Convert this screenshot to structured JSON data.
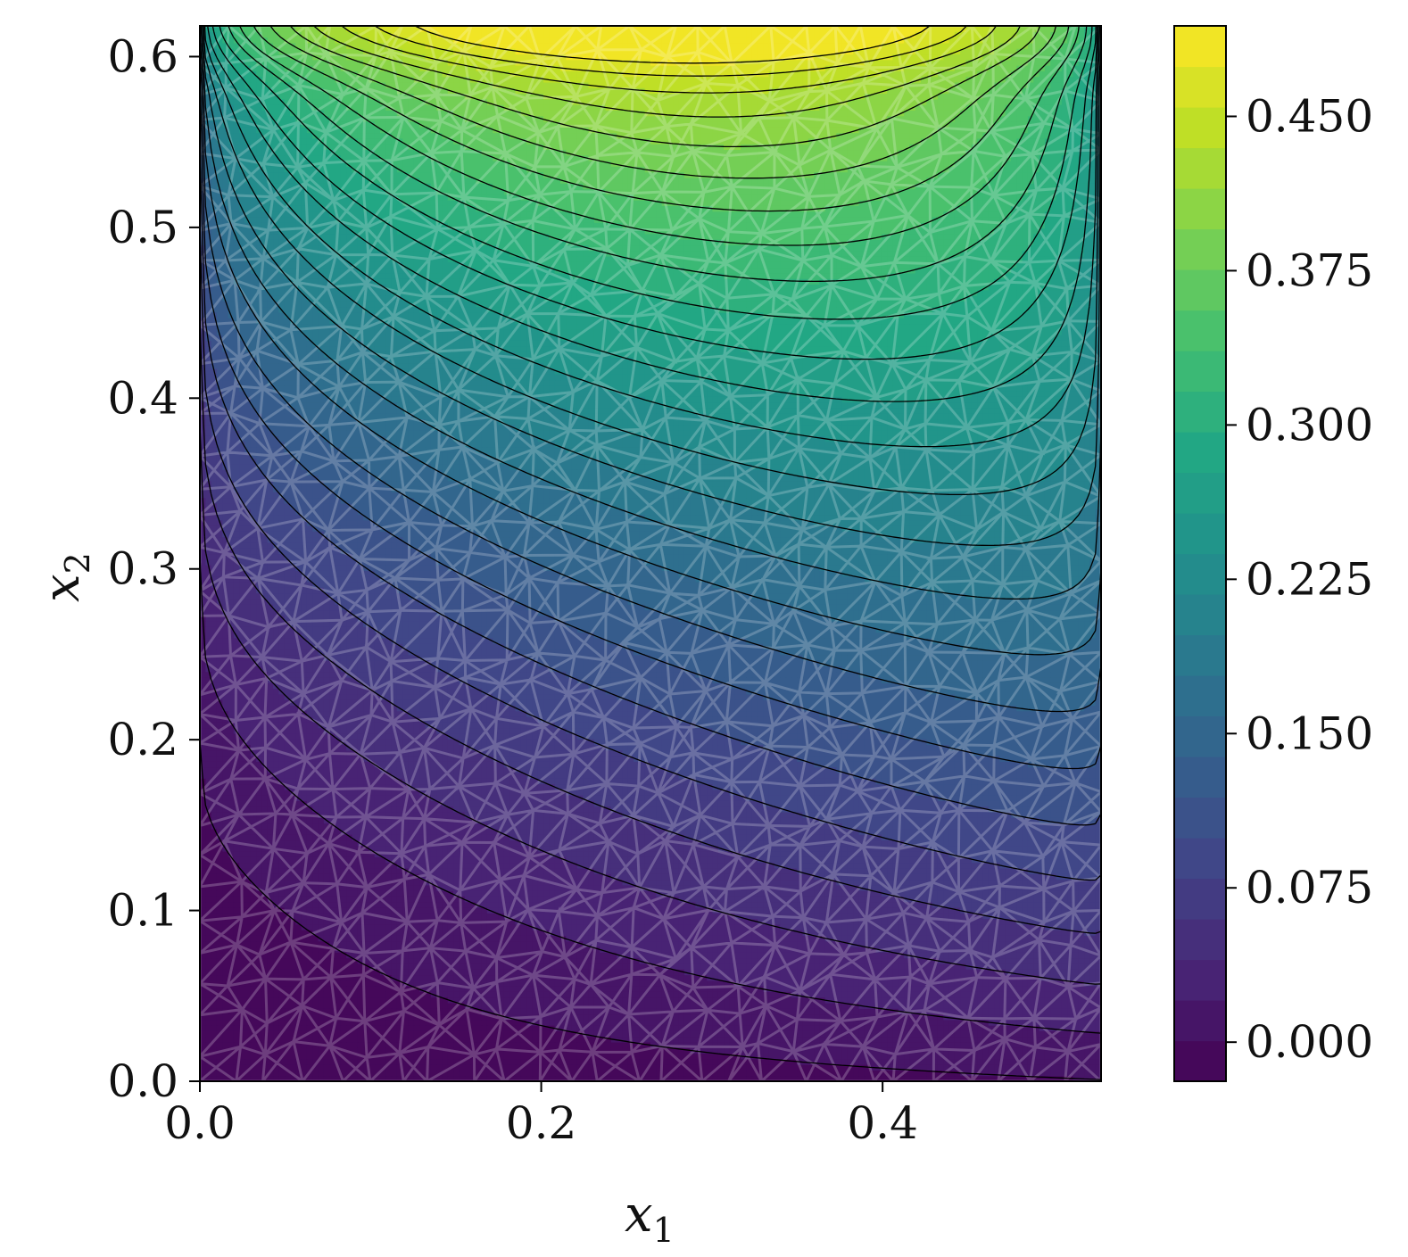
{
  "chart_data": {
    "type": "heatmap",
    "title": "",
    "xlabel": "x",
    "xlabel_sub": "1",
    "ylabel": "x",
    "ylabel_sub": "2",
    "xlim": [
      0.0,
      0.528
    ],
    "ylim": [
      0.0,
      0.618
    ],
    "x_ticks": [
      0.0,
      0.2,
      0.4
    ],
    "x_tick_labels": [
      "0.0",
      "0.2",
      "0.4"
    ],
    "y_ticks": [
      0.0,
      0.1,
      0.2,
      0.3,
      0.4,
      0.5,
      0.6
    ],
    "y_tick_labels": [
      "0.0",
      "0.1",
      "0.2",
      "0.3",
      "0.4",
      "0.5",
      "0.6"
    ],
    "colorbar": {
      "colormap": "viridis",
      "range": [
        -0.019,
        0.494
      ],
      "levels": 26,
      "ticks": [
        0.0,
        0.075,
        0.15,
        0.225,
        0.3,
        0.375,
        0.45
      ],
      "tick_labels": [
        "0.000",
        "0.075",
        "0.150",
        "0.225",
        "0.300",
        "0.375",
        "0.450"
      ]
    },
    "overlay": "triangular mesh (white, semi-transparent)",
    "contour_lines": "black",
    "grid": false
  }
}
